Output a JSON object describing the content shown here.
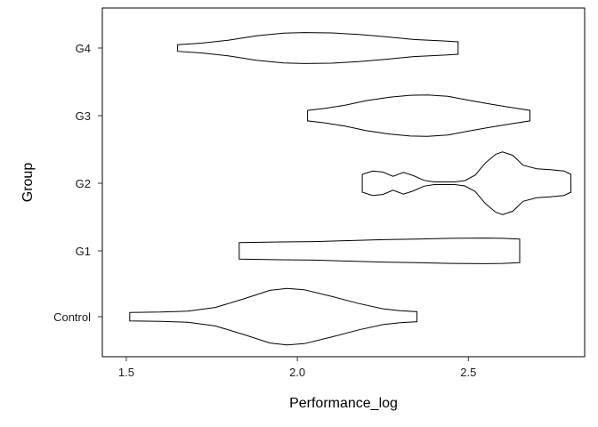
{
  "chart_data": {
    "type": "violin",
    "orientation": "horizontal",
    "xlabel": "Performance_log",
    "ylabel": "Group",
    "xlim": [
      1.43,
      2.84
    ],
    "x_ticks": [
      1.5,
      2.0,
      2.5
    ],
    "x_tick_labels": [
      "1.5",
      "2.0",
      "2.5"
    ],
    "categories": [
      "Control",
      "G1",
      "G2",
      "G3",
      "G4"
    ],
    "grid": false,
    "legend": "none",
    "fill_color": "#ffffff",
    "stroke_color": "#000000",
    "series": [
      {
        "group": "Control",
        "density": [
          [
            1.51,
            0.13
          ],
          [
            1.6,
            0.14
          ],
          [
            1.68,
            0.17
          ],
          [
            1.76,
            0.28
          ],
          [
            1.84,
            0.53
          ],
          [
            1.92,
            0.8
          ],
          [
            1.97,
            0.86
          ],
          [
            2.02,
            0.82
          ],
          [
            2.1,
            0.62
          ],
          [
            2.18,
            0.4
          ],
          [
            2.25,
            0.24
          ],
          [
            2.3,
            0.18
          ],
          [
            2.35,
            0.15
          ]
        ]
      },
      {
        "group": "G1",
        "density": [
          [
            1.83,
            0.25
          ],
          [
            1.95,
            0.27
          ],
          [
            2.05,
            0.28
          ],
          [
            2.15,
            0.31
          ],
          [
            2.25,
            0.34
          ],
          [
            2.35,
            0.36
          ],
          [
            2.45,
            0.38
          ],
          [
            2.55,
            0.39
          ],
          [
            2.6,
            0.38
          ],
          [
            2.65,
            0.36
          ]
        ]
      },
      {
        "group": "G2",
        "density": [
          [
            2.19,
            0.27
          ],
          [
            2.22,
            0.37
          ],
          [
            2.25,
            0.34
          ],
          [
            2.28,
            0.21
          ],
          [
            2.31,
            0.33
          ],
          [
            2.34,
            0.23
          ],
          [
            2.37,
            0.09
          ],
          [
            2.4,
            0.04
          ],
          [
            2.43,
            0.04
          ],
          [
            2.46,
            0.04
          ],
          [
            2.49,
            0.08
          ],
          [
            2.52,
            0.25
          ],
          [
            2.55,
            0.62
          ],
          [
            2.58,
            0.88
          ],
          [
            2.6,
            0.95
          ],
          [
            2.63,
            0.85
          ],
          [
            2.66,
            0.55
          ],
          [
            2.7,
            0.44
          ],
          [
            2.74,
            0.41
          ],
          [
            2.78,
            0.37
          ],
          [
            2.8,
            0.27
          ]
        ]
      },
      {
        "group": "G3",
        "density": [
          [
            2.03,
            0.16
          ],
          [
            2.08,
            0.22
          ],
          [
            2.14,
            0.32
          ],
          [
            2.2,
            0.45
          ],
          [
            2.27,
            0.56
          ],
          [
            2.33,
            0.62
          ],
          [
            2.38,
            0.63
          ],
          [
            2.44,
            0.59
          ],
          [
            2.5,
            0.47
          ],
          [
            2.57,
            0.34
          ],
          [
            2.63,
            0.24
          ],
          [
            2.68,
            0.16
          ]
        ]
      },
      {
        "group": "G4",
        "density": [
          [
            1.65,
            0.1
          ],
          [
            1.72,
            0.15
          ],
          [
            1.8,
            0.24
          ],
          [
            1.88,
            0.37
          ],
          [
            1.96,
            0.45
          ],
          [
            2.02,
            0.47
          ],
          [
            2.1,
            0.46
          ],
          [
            2.18,
            0.41
          ],
          [
            2.26,
            0.34
          ],
          [
            2.34,
            0.26
          ],
          [
            2.42,
            0.22
          ],
          [
            2.47,
            0.19
          ]
        ]
      }
    ]
  }
}
